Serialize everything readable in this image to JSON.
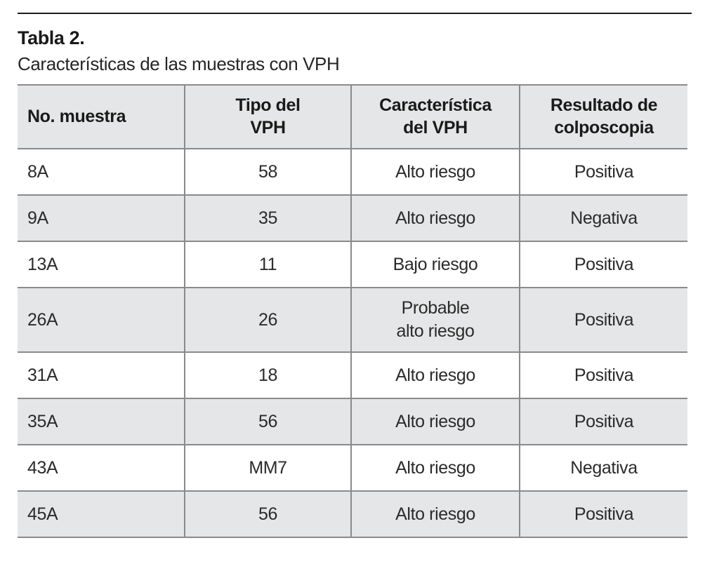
{
  "page": {
    "background": "#ffffff"
  },
  "colors": {
    "top_rule": "#1c1c1c",
    "table_border": "#8a8a8a",
    "header_bg": "#e5e6e7",
    "alt_row_bg": "#e5e6e7",
    "row_bg": "#ffffff",
    "header_text": "#1a1a1a",
    "cell_text": "#2b2b2b"
  },
  "table": {
    "title": "Tabla 2.",
    "subtitle": "Características de las muestras con VPH",
    "columns": [
      "No. muestra",
      "Tipo del\nVPH",
      "Característica\ndel VPH",
      "Resultado de\ncolposcopia"
    ],
    "rows": [
      {
        "no_muestra": "8A",
        "tipo_vph": "58",
        "caracteristica_vph": "Alto riesgo",
        "resultado_colposcopia": "Positiva"
      },
      {
        "no_muestra": "9A",
        "tipo_vph": "35",
        "caracteristica_vph": "Alto riesgo",
        "resultado_colposcopia": "Negativa"
      },
      {
        "no_muestra": "13A",
        "tipo_vph": "11",
        "caracteristica_vph": "Bajo riesgo",
        "resultado_colposcopia": "Positiva"
      },
      {
        "no_muestra": "26A",
        "tipo_vph": "26",
        "caracteristica_vph": "Probable\nalto riesgo",
        "resultado_colposcopia": "Positiva"
      },
      {
        "no_muestra": "31A",
        "tipo_vph": "18",
        "caracteristica_vph": "Alto riesgo",
        "resultado_colposcopia": "Positiva"
      },
      {
        "no_muestra": "35A",
        "tipo_vph": "56",
        "caracteristica_vph": "Alto riesgo",
        "resultado_colposcopia": "Positiva"
      },
      {
        "no_muestra": "43A",
        "tipo_vph": "MM7",
        "caracteristica_vph": "Alto riesgo",
        "resultado_colposcopia": "Negativa"
      },
      {
        "no_muestra": "45A",
        "tipo_vph": "56",
        "caracteristica_vph": "Alto riesgo",
        "resultado_colposcopia": "Positiva"
      }
    ]
  }
}
